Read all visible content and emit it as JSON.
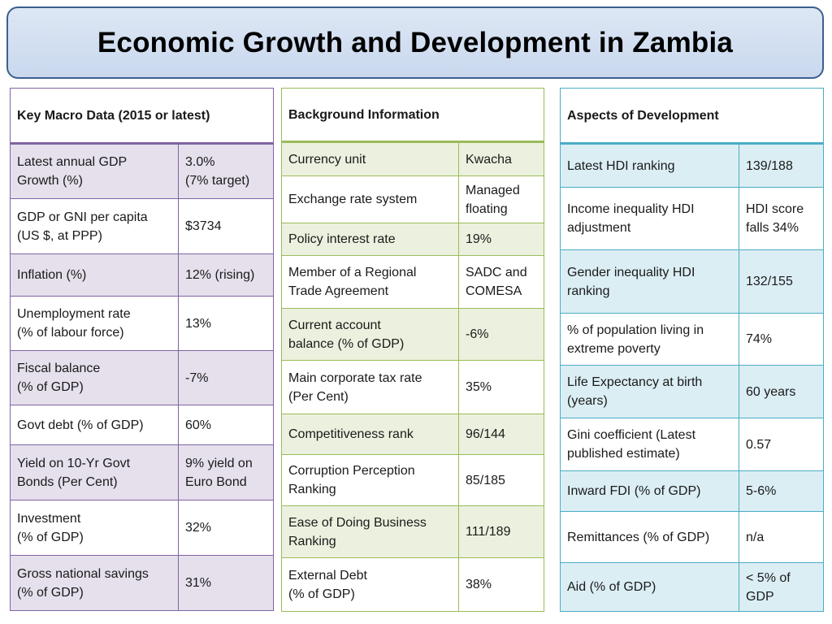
{
  "title": "Economic Growth and Development in Zambia",
  "panel1": {
    "header": "Key Macro Data (2015 or latest)",
    "rows": [
      {
        "label": "Latest annual GDP\nGrowth (%)",
        "value": "3.0%\n(7% target)"
      },
      {
        "label": "GDP or GNI per capita\n(US $, at PPP)",
        "value": "$3734"
      },
      {
        "label": "Inflation (%)",
        "value": "12% (rising)"
      },
      {
        "label": "Unemployment rate\n(% of labour force)",
        "value": "13%"
      },
      {
        "label": "Fiscal balance\n(% of GDP)",
        "value": "-7%"
      },
      {
        "label": "Govt debt (% of GDP)",
        "value": "60%"
      },
      {
        "label": "Yield on 10-Yr Govt\nBonds (Per Cent)",
        "value": "9% yield on\nEuro Bond"
      },
      {
        "label": "Investment\n(% of GDP)",
        "value": "32%"
      },
      {
        "label": "Gross national savings\n(% of GDP)",
        "value": "31%"
      }
    ]
  },
  "panel2": {
    "header": "Background Information",
    "rows": [
      {
        "label": "Currency unit",
        "value": "Kwacha"
      },
      {
        "label": "Exchange rate system",
        "value": "Managed\nfloating"
      },
      {
        "label": "Policy interest rate",
        "value": "19%"
      },
      {
        "label": "Member of a Regional\nTrade Agreement",
        "value": "SADC and\nCOMESA"
      },
      {
        "label": "Current account\nbalance (% of GDP)",
        "value": "-6%"
      },
      {
        "label": "Main corporate tax rate\n(Per Cent)",
        "value": "35%"
      },
      {
        "label": "Competitiveness rank",
        "value": "96/144"
      },
      {
        "label": "Corruption Perception\nRanking",
        "value": "85/185"
      },
      {
        "label": "Ease of Doing Business\nRanking",
        "value": "111/189"
      },
      {
        "label": "External Debt\n(% of GDP)",
        "value": "38%"
      }
    ]
  },
  "panel3": {
    "header": "Aspects of Development",
    "rows": [
      {
        "label": "Latest HDI ranking",
        "value": "139/188"
      },
      {
        "label": "Income inequality HDI\nadjustment",
        "value": "HDI score\nfalls 34%"
      },
      {
        "label": "Gender inequality HDI\nranking",
        "value": "132/155"
      },
      {
        "label": "% of population living in\nextreme poverty",
        "value": "74%"
      },
      {
        "label": "Life Expectancy at birth\n(years)",
        "value": "60 years"
      },
      {
        "label": "Gini coefficient (Latest\npublished estimate)",
        "value": "0.57"
      },
      {
        "label": "Inward FDI (% of GDP)",
        "value": "5-6%"
      },
      {
        "label": "Remittances (% of GDP)",
        "value": "n/a"
      },
      {
        "label": "Aid (% of GDP)",
        "value": "< 5% of\nGDP"
      }
    ]
  }
}
